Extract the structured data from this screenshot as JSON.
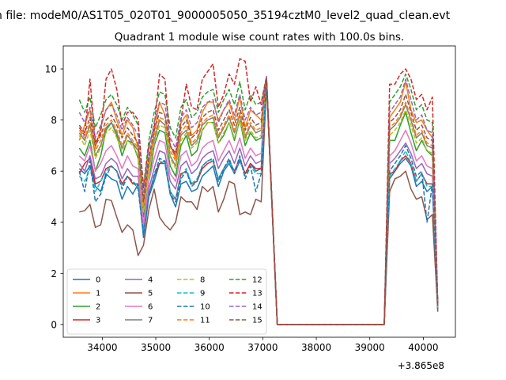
{
  "figure": {
    "suptitle": "n file: modeM0/AS1T05_020T01_9000005050_35194cztM0_level2_quad_clean.evt",
    "background": "#ffffff"
  },
  "chart_data": {
    "type": "line",
    "title": "Quadrant 1 module wise count rates with 100.0s bins.",
    "xlabel": "",
    "ylabel": "",
    "x_offset_label": "+3.865e8",
    "x_offset": 386500000,
    "xlim": [
      33270,
      40600
    ],
    "ylim": [
      -0.5,
      10.9
    ],
    "xticks": [
      34000,
      35000,
      36000,
      37000,
      38000,
      39000,
      40000
    ],
    "xtick_labels": [
      "34000",
      "35000",
      "36000",
      "37000",
      "38000",
      "39000",
      "40000"
    ],
    "yticks": [
      0,
      2,
      4,
      6,
      8,
      10
    ],
    "ytick_labels": [
      "0",
      "2",
      "4",
      "6",
      "8",
      "10"
    ],
    "grid": false,
    "legend_placement": "lower-left",
    "legend_columns": 4,
    "x": [
      33570,
      33670,
      33770,
      33870,
      33970,
      34070,
      34170,
      34270,
      34370,
      34470,
      34570,
      34670,
      34770,
      34870,
      34970,
      35070,
      35170,
      35270,
      35370,
      35470,
      35570,
      35670,
      35770,
      35870,
      35970,
      36070,
      36170,
      36270,
      36370,
      36470,
      36570,
      36670,
      36770,
      36870,
      36970,
      37070,
      37270,
      39270,
      39370,
      39470,
      39570,
      39670,
      39770,
      39870,
      39970,
      40070,
      40170,
      40270
    ],
    "series": [
      {
        "name": "0",
        "color": "#1f77b4",
        "dash": "solid",
        "values": [
          6.1,
          5.9,
          6.2,
          5.4,
          5.2,
          5.9,
          5.7,
          5.6,
          4.9,
          5.4,
          5.1,
          5.5,
          3.4,
          5.0,
          5.6,
          6.3,
          6.3,
          5.1,
          4.6,
          5.5,
          5.6,
          5.2,
          5.3,
          5.8,
          6.0,
          6.2,
          5.4,
          6.0,
          6.3,
          5.9,
          6.4,
          5.9,
          6.3,
          6.0,
          6.1,
          9.5,
          0.0,
          0.0,
          5.7,
          6.0,
          6.3,
          6.5,
          6.2,
          5.4,
          5.6,
          5.2,
          5.4,
          0.6
        ]
      },
      {
        "name": "1",
        "color": "#ff7f0e",
        "dash": "solid",
        "values": [
          7.2,
          7.8,
          8.4,
          6.9,
          7.7,
          8.4,
          8.7,
          8.0,
          7.4,
          8.0,
          7.7,
          6.9,
          4.8,
          6.4,
          7.5,
          8.7,
          8.2,
          7.0,
          6.5,
          7.9,
          8.2,
          7.4,
          7.6,
          8.3,
          8.7,
          8.7,
          8.0,
          8.4,
          8.7,
          8.0,
          8.9,
          7.7,
          8.4,
          8.2,
          8.0,
          9.6,
          0.0,
          0.0,
          8.1,
          8.4,
          8.7,
          9.5,
          8.4,
          7.9,
          8.0,
          7.6,
          7.3,
          0.8
        ]
      },
      {
        "name": "2",
        "color": "#2ca02c",
        "dash": "solid",
        "values": [
          6.9,
          6.6,
          7.2,
          6.0,
          6.6,
          7.6,
          7.9,
          7.4,
          6.6,
          7.2,
          7.1,
          6.5,
          4.2,
          5.6,
          7.0,
          7.6,
          7.5,
          6.2,
          5.8,
          7.0,
          7.4,
          6.6,
          6.8,
          7.6,
          7.9,
          7.9,
          7.1,
          7.4,
          7.9,
          7.2,
          8.0,
          7.0,
          7.5,
          7.2,
          7.3,
          9.5,
          0.0,
          0.0,
          7.2,
          7.2,
          7.8,
          8.3,
          7.5,
          6.8,
          7.2,
          6.8,
          6.6,
          0.7
        ]
      },
      {
        "name": "3",
        "color": "#d62728",
        "dash": "solid",
        "values": [
          5.9,
          6.3,
          6.5,
          5.5,
          5.6,
          6.1,
          6.2,
          6.0,
          5.5,
          5.8,
          5.5,
          5.5,
          3.7,
          5.1,
          5.8,
          6.3,
          6.4,
          5.2,
          4.9,
          5.9,
          6.0,
          5.5,
          5.6,
          6.1,
          6.3,
          6.4,
          5.7,
          6.1,
          6.4,
          6.0,
          6.5,
          5.9,
          6.3,
          6.1,
          6.1,
          9.6,
          0.0,
          0.0,
          5.9,
          6.0,
          6.4,
          6.6,
          6.3,
          5.6,
          5.9,
          5.5,
          5.5,
          0.6
        ]
      },
      {
        "name": "4",
        "color": "#9467bd",
        "dash": "solid",
        "values": [
          6.3,
          6.0,
          6.6,
          5.7,
          5.8,
          6.3,
          6.5,
          6.3,
          5.7,
          6.1,
          5.8,
          5.8,
          3.7,
          5.3,
          6.1,
          6.8,
          6.7,
          5.6,
          5.3,
          6.2,
          6.4,
          5.9,
          6.1,
          6.5,
          6.7,
          6.8,
          6.1,
          6.5,
          6.8,
          6.3,
          6.9,
          6.2,
          6.6,
          6.3,
          6.4,
          9.6,
          0.0,
          0.0,
          6.3,
          6.5,
          6.8,
          7.1,
          6.7,
          6.1,
          6.3,
          5.9,
          5.8,
          0.6
        ]
      },
      {
        "name": "5",
        "color": "#8c564b",
        "dash": "solid",
        "values": [
          4.4,
          4.45,
          4.7,
          3.8,
          3.9,
          4.9,
          4.85,
          4.2,
          3.6,
          3.9,
          3.7,
          2.7,
          3.1,
          4.5,
          5.3,
          4.2,
          3.9,
          3.7,
          4.0,
          5.0,
          4.8,
          4.8,
          4.5,
          5.4,
          5.2,
          5.4,
          4.4,
          4.9,
          5.6,
          5.5,
          4.3,
          4.4,
          4.3,
          4.9,
          4.8,
          9.4,
          0.0,
          0.0,
          5.2,
          5.7,
          5.8,
          6.0,
          5.3,
          4.9,
          5.0,
          4.1,
          4.3,
          0.5
        ]
      },
      {
        "name": "6",
        "color": "#e377c2",
        "dash": "solid",
        "values": [
          6.6,
          6.4,
          7.0,
          6.0,
          6.3,
          6.8,
          7.0,
          6.6,
          6.1,
          6.6,
          6.2,
          6.1,
          3.9,
          5.6,
          6.5,
          7.2,
          7.1,
          5.9,
          5.6,
          6.6,
          6.8,
          6.2,
          6.4,
          6.9,
          7.1,
          7.2,
          6.4,
          6.8,
          7.2,
          6.7,
          7.3,
          6.5,
          6.9,
          6.6,
          6.7,
          9.6,
          0.0,
          0.0,
          6.6,
          6.8,
          7.2,
          7.6,
          7.1,
          6.4,
          6.6,
          6.2,
          6.1,
          0.6
        ]
      },
      {
        "name": "7",
        "color": "#7f7f7f",
        "dash": "solid",
        "values": [
          7.5,
          7.2,
          7.8,
          6.6,
          7.0,
          7.7,
          7.9,
          7.5,
          6.9,
          7.4,
          7.1,
          6.8,
          4.5,
          6.1,
          7.2,
          8.0,
          7.8,
          6.6,
          6.2,
          7.4,
          7.6,
          7.0,
          7.2,
          7.8,
          8.0,
          8.1,
          7.3,
          7.7,
          8.1,
          7.5,
          8.2,
          7.3,
          7.8,
          7.5,
          7.6,
          9.6,
          0.0,
          0.0,
          7.6,
          7.8,
          8.1,
          8.6,
          8.0,
          7.3,
          7.5,
          7.0,
          6.9,
          0.7
        ]
      },
      {
        "name": "8",
        "color": "#bcbd22",
        "dash": "dashed",
        "values": [
          7.4,
          7.0,
          7.6,
          6.5,
          6.9,
          7.5,
          7.7,
          7.3,
          6.8,
          7.2,
          7.0,
          6.6,
          4.4,
          6.0,
          7.1,
          7.8,
          7.7,
          6.5,
          6.1,
          7.2,
          7.5,
          6.9,
          7.1,
          7.6,
          7.9,
          7.9,
          7.1,
          7.5,
          7.9,
          7.3,
          8.0,
          7.2,
          7.6,
          7.3,
          7.4,
          9.6,
          0.0,
          0.0,
          7.4,
          7.6,
          7.9,
          8.4,
          7.8,
          7.1,
          7.3,
          6.8,
          6.7,
          0.7
        ]
      },
      {
        "name": "9",
        "color": "#17becf",
        "dash": "dashed",
        "values": [
          5.8,
          5.6,
          6.1,
          5.2,
          5.6,
          6.0,
          6.2,
          6.0,
          5.4,
          5.8,
          5.6,
          5.4,
          3.5,
          5.0,
          5.9,
          6.4,
          6.3,
          5.2,
          4.9,
          5.8,
          6.1,
          5.5,
          5.7,
          6.2,
          6.4,
          6.4,
          5.7,
          6.1,
          6.4,
          5.9,
          6.5,
          5.8,
          6.2,
          5.9,
          5.9,
          9.6,
          0.0,
          0.0,
          5.8,
          6.1,
          6.4,
          6.8,
          6.3,
          5.6,
          5.9,
          5.4,
          5.4,
          0.6
        ]
      },
      {
        "name": "10",
        "color": "#1f77b4",
        "dash": "dashed",
        "values": [
          6.0,
          5.2,
          6.4,
          4.8,
          5.1,
          5.8,
          6.2,
          6.0,
          5.3,
          5.8,
          5.6,
          5.3,
          3.5,
          5.0,
          5.8,
          6.5,
          6.4,
          5.1,
          4.8,
          5.7,
          6.0,
          5.4,
          5.6,
          6.2,
          6.4,
          6.5,
          5.6,
          6.1,
          6.5,
          5.9,
          6.6,
          5.7,
          6.2,
          5.2,
          5.9,
          9.6,
          0.0,
          0.0,
          6.0,
          6.3,
          6.6,
          7.0,
          6.5,
          5.8,
          6.0,
          4.0,
          5.5,
          0.6
        ]
      },
      {
        "name": "11",
        "color": "#ff7f0e",
        "dash": "dashed",
        "values": [
          7.6,
          7.3,
          7.9,
          6.8,
          7.2,
          7.8,
          8.0,
          7.6,
          7.0,
          7.5,
          7.2,
          6.9,
          4.6,
          6.3,
          7.4,
          8.1,
          8.0,
          6.8,
          6.4,
          7.5,
          7.8,
          7.1,
          7.3,
          7.9,
          8.1,
          8.2,
          7.4,
          7.8,
          8.2,
          7.6,
          8.3,
          7.4,
          7.9,
          7.6,
          7.7,
          9.6,
          0.0,
          0.0,
          7.7,
          7.9,
          8.2,
          8.7,
          8.1,
          7.4,
          7.6,
          7.1,
          7.0,
          0.7
        ]
      },
      {
        "name": "12",
        "color": "#2ca02c",
        "dash": "dashed",
        "values": [
          8.8,
          8.3,
          8.9,
          7.7,
          8.2,
          8.8,
          9.0,
          8.6,
          8.0,
          8.5,
          8.2,
          7.8,
          5.4,
          7.2,
          8.3,
          9.1,
          9.0,
          7.7,
          7.3,
          8.5,
          8.8,
          8.1,
          8.3,
          8.9,
          9.1,
          9.2,
          8.3,
          8.8,
          9.2,
          8.6,
          9.5,
          8.4,
          9.0,
          8.6,
          8.7,
          9.7,
          0.0,
          0.0,
          8.7,
          9.0,
          9.3,
          9.8,
          9.2,
          8.4,
          8.6,
          8.0,
          7.9,
          0.8
        ]
      },
      {
        "name": "13",
        "color": "#d62728",
        "dash": "dashed",
        "values": [
          7.7,
          7.4,
          9.6,
          7.1,
          7.5,
          9.6,
          10.0,
          9.2,
          7.8,
          8.3,
          8.3,
          8.0,
          5.3,
          7.0,
          7.7,
          9.8,
          9.6,
          7.0,
          6.7,
          8.0,
          9.4,
          8.5,
          8.4,
          9.6,
          9.9,
          10.2,
          8.5,
          9.0,
          9.8,
          9.4,
          10.4,
          10.3,
          8.7,
          9.3,
          8.6,
          9.7,
          0.0,
          0.0,
          9.4,
          9.4,
          9.8,
          10.0,
          9.6,
          8.8,
          9.0,
          8.4,
          8.9,
          0.8
        ]
      },
      {
        "name": "14",
        "color": "#9467bd",
        "dash": "dashed",
        "values": [
          8.3,
          7.9,
          8.5,
          7.3,
          7.8,
          8.4,
          8.6,
          8.2,
          7.6,
          8.1,
          7.8,
          7.4,
          5.0,
          6.8,
          7.9,
          8.7,
          8.6,
          7.3,
          6.9,
          8.1,
          8.4,
          7.7,
          7.9,
          8.5,
          8.7,
          8.8,
          7.9,
          8.4,
          8.8,
          8.2,
          9.0,
          8.0,
          8.5,
          8.2,
          8.3,
          9.7,
          0.0,
          0.0,
          8.3,
          8.6,
          8.9,
          9.6,
          8.8,
          8.0,
          8.2,
          7.6,
          7.5,
          0.8
        ]
      },
      {
        "name": "15",
        "color": "#8c564b",
        "dash": "dashed",
        "values": [
          7.8,
          7.5,
          8.1,
          7.0,
          7.4,
          8.0,
          8.2,
          7.8,
          7.3,
          7.7,
          7.4,
          7.1,
          4.8,
          6.5,
          7.6,
          8.3,
          8.2,
          7.0,
          6.6,
          7.7,
          8.0,
          7.3,
          7.5,
          8.1,
          8.3,
          8.4,
          7.6,
          8.0,
          8.4,
          7.8,
          8.5,
          7.6,
          8.1,
          7.8,
          7.9,
          9.6,
          0.0,
          0.0,
          7.9,
          8.1,
          8.4,
          9.0,
          8.3,
          7.6,
          7.8,
          7.3,
          7.2,
          0.7
        ]
      }
    ]
  }
}
